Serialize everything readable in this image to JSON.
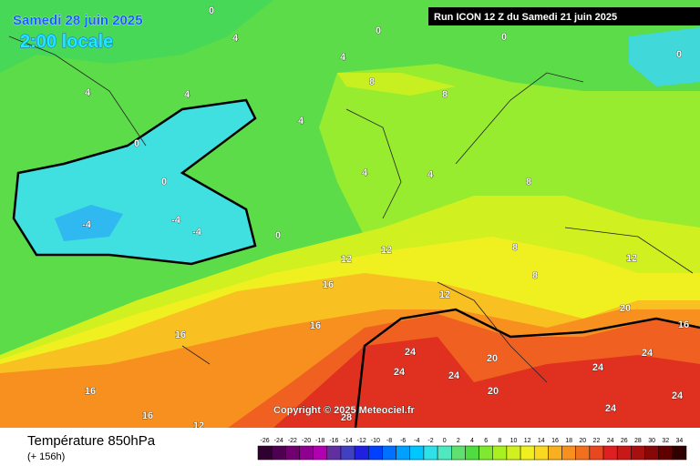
{
  "header": {
    "date": "Samedi 28 juin 2025",
    "time": "2:00 locale",
    "run": "Run ICON 12 Z du Samedi 21 juin 2025"
  },
  "copyright": "Copyright © 2025 Meteociel.fr",
  "footer": {
    "title": "Température 850hPa",
    "lead": "(+ 156h)"
  },
  "legend": {
    "values": [
      -26,
      -24,
      -22,
      -20,
      -18,
      -16,
      -14,
      -12,
      -10,
      -8,
      -6,
      -4,
      -2,
      0,
      2,
      4,
      6,
      8,
      10,
      12,
      14,
      16,
      18,
      20,
      22,
      24,
      26,
      28,
      30,
      32,
      34
    ],
    "colors": [
      "#300030",
      "#500050",
      "#700070",
      "#900090",
      "#b000b0",
      "#6030a0",
      "#4040c0",
      "#2020e0",
      "#0040ff",
      "#0070ff",
      "#00a0ff",
      "#00c8ff",
      "#30e0e8",
      "#50e8c0",
      "#60e070",
      "#50dc40",
      "#80e830",
      "#a8f020",
      "#d0f020",
      "#f0f020",
      "#f8d820",
      "#f8b020",
      "#f89020",
      "#f07020",
      "#e84820",
      "#e02020",
      "#c81818",
      "#a81010",
      "#880808",
      "#600000",
      "#300000"
    ]
  },
  "map_labels": [
    0,
    0,
    0,
    0,
    4,
    4,
    4,
    4,
    4,
    0,
    0,
    -4,
    -4,
    -4,
    0,
    8,
    8,
    4,
    4,
    8,
    8,
    8,
    12,
    12,
    12,
    16,
    16,
    12,
    16,
    16,
    16,
    24,
    24,
    24,
    20,
    20,
    24,
    24,
    24,
    28,
    24,
    16,
    12,
    20
  ]
}
